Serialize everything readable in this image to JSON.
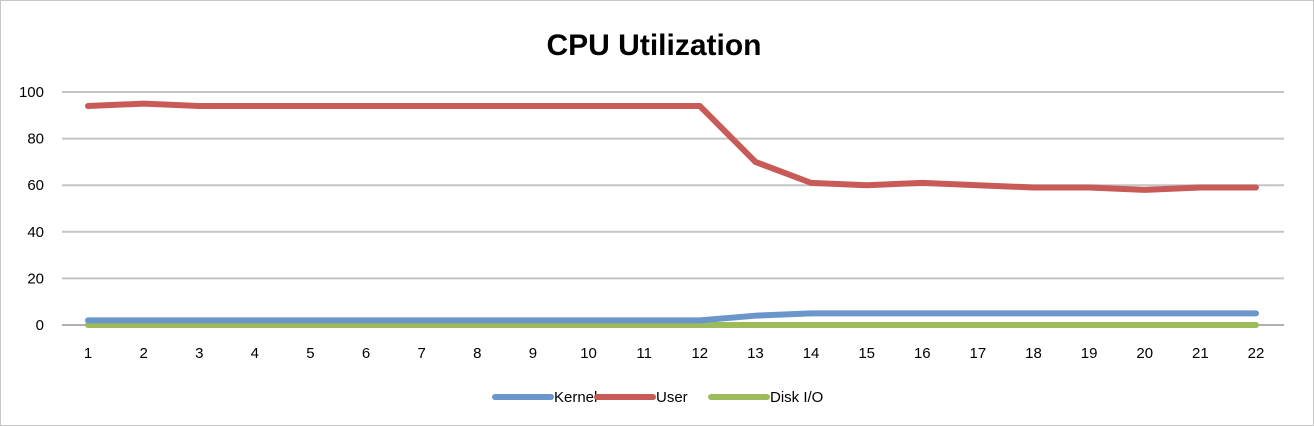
{
  "chart_data": {
    "type": "line",
    "title": "CPU Utilization",
    "xlabel": "",
    "ylabel": "",
    "x": [
      1,
      2,
      3,
      4,
      5,
      6,
      7,
      8,
      9,
      10,
      11,
      12,
      13,
      14,
      15,
      16,
      17,
      18,
      19,
      20,
      21,
      22
    ],
    "y_ticks": [
      0,
      20,
      40,
      60,
      80,
      100
    ],
    "ylim": [
      0,
      100
    ],
    "grid": true,
    "legend": "bottom",
    "series": [
      {
        "name": "Kernel",
        "color": "#6b96cc",
        "values": [
          2,
          2,
          2,
          2,
          2,
          2,
          2,
          2,
          2,
          2,
          2,
          2,
          4,
          5,
          5,
          5,
          5,
          5,
          5,
          5,
          5,
          5
        ]
      },
      {
        "name": "User",
        "color": "#c85a57",
        "values": [
          94,
          95,
          94,
          94,
          94,
          94,
          94,
          94,
          94,
          94,
          94,
          94,
          70,
          61,
          60,
          61,
          60,
          59,
          59,
          58,
          59,
          59
        ]
      },
      {
        "name": "Disk I/O",
        "color": "#9cbb59",
        "values": [
          0,
          0,
          0,
          0,
          0,
          0,
          0,
          0,
          0,
          0,
          0,
          0,
          0,
          0,
          0,
          0,
          0,
          0,
          0,
          0,
          0,
          0
        ]
      }
    ]
  }
}
